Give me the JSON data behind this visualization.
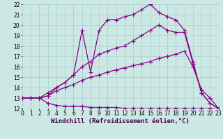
{
  "background_color": "#cce8e4",
  "grid_color": "#aacccc",
  "line_color": "#880088",
  "marker": "+",
  "markersize": 4,
  "linewidth": 0.9,
  "xlabel": "Windchill (Refroidissement éolien,°C)",
  "xlabel_fontsize": 6.5,
  "tick_fontsize": 5.5,
  "ylim": [
    12,
    22
  ],
  "xlim": [
    0,
    23
  ],
  "yticks": [
    12,
    13,
    14,
    15,
    16,
    17,
    18,
    19,
    20,
    21,
    22
  ],
  "xticks": [
    0,
    1,
    2,
    3,
    4,
    5,
    6,
    7,
    8,
    9,
    10,
    11,
    12,
    13,
    14,
    15,
    16,
    17,
    18,
    19,
    20,
    21,
    22,
    23
  ],
  "lines": [
    {
      "x": [
        0,
        1,
        2,
        3,
        4,
        5,
        6,
        7,
        8,
        9,
        10,
        11,
        12,
        13,
        14,
        15,
        16,
        17,
        18,
        19,
        20,
        21,
        22,
        23
      ],
      "y": [
        13.0,
        13.0,
        13.0,
        12.5,
        12.3,
        12.2,
        12.2,
        12.2,
        12.1,
        12.1,
        12.1,
        12.1,
        12.0,
        12.0,
        12.0,
        12.0,
        12.0,
        12.0,
        12.0,
        12.0,
        12.0,
        12.0,
        12.0,
        12.0
      ]
    },
    {
      "x": [
        0,
        1,
        2,
        3,
        4,
        5,
        6,
        7,
        8,
        9,
        10,
        11,
        12,
        13,
        14,
        15,
        16,
        17,
        18,
        19,
        20,
        21,
        22,
        23
      ],
      "y": [
        13.0,
        13.0,
        13.0,
        13.2,
        13.7,
        14.0,
        14.3,
        14.7,
        15.0,
        15.2,
        15.5,
        15.7,
        15.9,
        16.1,
        16.3,
        16.5,
        16.8,
        17.0,
        17.2,
        17.5,
        16.0,
        13.8,
        13.0,
        12.0
      ]
    },
    {
      "x": [
        0,
        1,
        2,
        3,
        4,
        5,
        6,
        7,
        8,
        9,
        10,
        11,
        12,
        13,
        14,
        15,
        16,
        17,
        18,
        19,
        20,
        21,
        22,
        23
      ],
      "y": [
        13.0,
        13.0,
        13.0,
        13.5,
        14.0,
        14.5,
        15.2,
        16.0,
        16.5,
        17.2,
        17.5,
        17.8,
        18.0,
        18.5,
        19.0,
        19.5,
        20.0,
        19.5,
        19.3,
        19.3,
        16.3,
        13.5,
        12.5,
        12.0
      ]
    },
    {
      "x": [
        0,
        2,
        3,
        4,
        5,
        6,
        7,
        8,
        9,
        10,
        11,
        12,
        13,
        14,
        15,
        16,
        17,
        18,
        19,
        20,
        21,
        22,
        23
      ],
      "y": [
        13.0,
        13.0,
        13.2,
        14.0,
        14.5,
        15.2,
        19.5,
        15.5,
        19.5,
        20.5,
        20.5,
        20.8,
        21.0,
        21.5,
        22.0,
        21.2,
        20.8,
        20.5,
        19.5,
        16.5,
        13.5,
        12.5,
        12.0
      ]
    }
  ]
}
